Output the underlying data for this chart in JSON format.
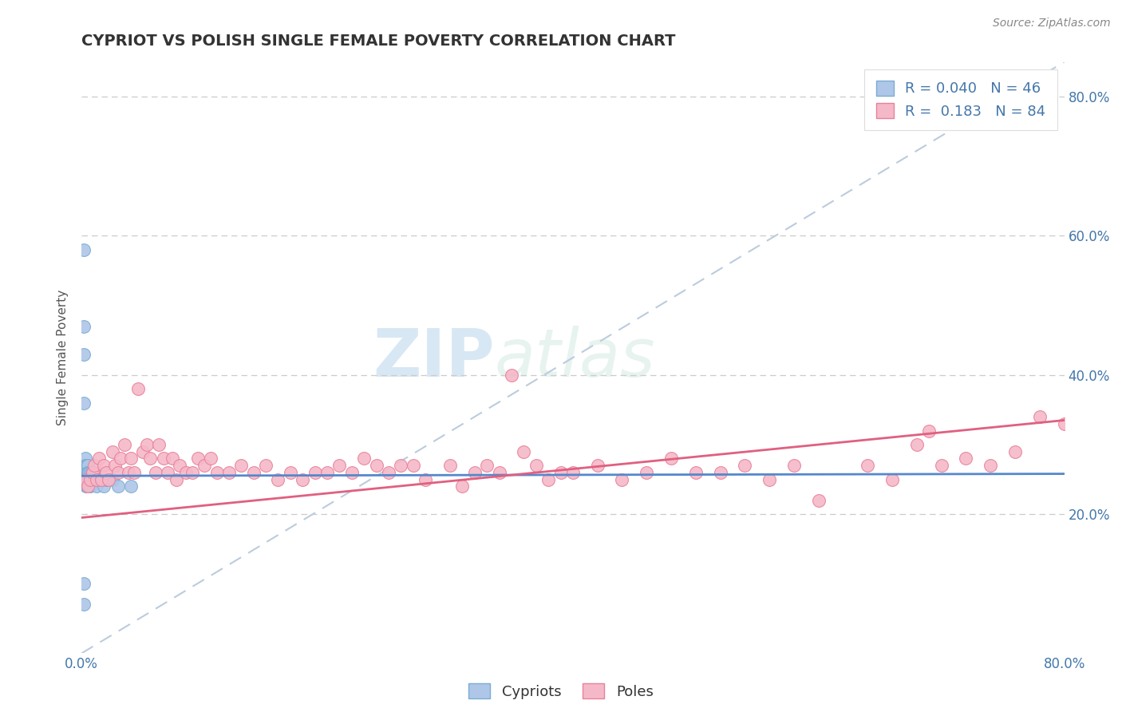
{
  "title": "CYPRIOT VS POLISH SINGLE FEMALE POVERTY CORRELATION CHART",
  "source_text": "Source: ZipAtlas.com",
  "ylabel": "Single Female Poverty",
  "xlim": [
    0.0,
    0.8
  ],
  "ylim": [
    0.0,
    0.85
  ],
  "ytick_positions": [
    0.2,
    0.4,
    0.6,
    0.8
  ],
  "ytick_labels": [
    "20.0%",
    "40.0%",
    "60.0%",
    "80.0%"
  ],
  "cypriot_color": "#aec6e8",
  "cypriot_edge": "#7aadd4",
  "polish_color": "#f5b8c8",
  "polish_edge": "#e8819a",
  "trend_cypriot_color": "#5588cc",
  "trend_polish_color": "#e06080",
  "trend_dashed_color": "#bbccdd",
  "R_cypriot": 0.04,
  "N_cypriot": 46,
  "R_polish": 0.183,
  "N_polish": 84,
  "legend_labels": [
    "Cypriots",
    "Poles"
  ],
  "watermark_zip": "ZIP",
  "watermark_atlas": "atlas",
  "cypriot_x": [
    0.002,
    0.002,
    0.002,
    0.002,
    0.002,
    0.002,
    0.003,
    0.003,
    0.003,
    0.003,
    0.003,
    0.004,
    0.004,
    0.004,
    0.004,
    0.004,
    0.004,
    0.004,
    0.004,
    0.005,
    0.005,
    0.005,
    0.005,
    0.005,
    0.005,
    0.005,
    0.005,
    0.006,
    0.006,
    0.006,
    0.006,
    0.007,
    0.007,
    0.007,
    0.008,
    0.008,
    0.009,
    0.01,
    0.01,
    0.012,
    0.015,
    0.018,
    0.02,
    0.025,
    0.03,
    0.04
  ],
  "cypriot_y": [
    0.58,
    0.47,
    0.43,
    0.36,
    0.1,
    0.07,
    0.28,
    0.27,
    0.26,
    0.26,
    0.25,
    0.27,
    0.27,
    0.26,
    0.26,
    0.25,
    0.25,
    0.24,
    0.24,
    0.27,
    0.27,
    0.26,
    0.26,
    0.25,
    0.25,
    0.24,
    0.24,
    0.26,
    0.26,
    0.25,
    0.24,
    0.26,
    0.25,
    0.24,
    0.26,
    0.25,
    0.25,
    0.26,
    0.25,
    0.24,
    0.25,
    0.24,
    0.25,
    0.25,
    0.24,
    0.24
  ],
  "polish_x": [
    0.003,
    0.005,
    0.007,
    0.009,
    0.01,
    0.012,
    0.014,
    0.016,
    0.018,
    0.02,
    0.022,
    0.025,
    0.027,
    0.03,
    0.032,
    0.035,
    0.038,
    0.04,
    0.043,
    0.046,
    0.05,
    0.053,
    0.056,
    0.06,
    0.063,
    0.067,
    0.07,
    0.074,
    0.077,
    0.08,
    0.085,
    0.09,
    0.095,
    0.1,
    0.105,
    0.11,
    0.12,
    0.13,
    0.14,
    0.15,
    0.16,
    0.17,
    0.18,
    0.19,
    0.2,
    0.21,
    0.22,
    0.23,
    0.24,
    0.25,
    0.26,
    0.27,
    0.28,
    0.3,
    0.31,
    0.32,
    0.33,
    0.34,
    0.35,
    0.36,
    0.37,
    0.38,
    0.39,
    0.4,
    0.42,
    0.44,
    0.46,
    0.48,
    0.5,
    0.52,
    0.54,
    0.56,
    0.58,
    0.6,
    0.64,
    0.66,
    0.68,
    0.7,
    0.72,
    0.74,
    0.76,
    0.78,
    0.8,
    0.69
  ],
  "polish_y": [
    0.25,
    0.24,
    0.25,
    0.26,
    0.27,
    0.25,
    0.28,
    0.25,
    0.27,
    0.26,
    0.25,
    0.29,
    0.27,
    0.26,
    0.28,
    0.3,
    0.26,
    0.28,
    0.26,
    0.38,
    0.29,
    0.3,
    0.28,
    0.26,
    0.3,
    0.28,
    0.26,
    0.28,
    0.25,
    0.27,
    0.26,
    0.26,
    0.28,
    0.27,
    0.28,
    0.26,
    0.26,
    0.27,
    0.26,
    0.27,
    0.25,
    0.26,
    0.25,
    0.26,
    0.26,
    0.27,
    0.26,
    0.28,
    0.27,
    0.26,
    0.27,
    0.27,
    0.25,
    0.27,
    0.24,
    0.26,
    0.27,
    0.26,
    0.4,
    0.29,
    0.27,
    0.25,
    0.26,
    0.26,
    0.27,
    0.25,
    0.26,
    0.28,
    0.26,
    0.26,
    0.27,
    0.25,
    0.27,
    0.22,
    0.27,
    0.25,
    0.3,
    0.27,
    0.28,
    0.27,
    0.29,
    0.34,
    0.33,
    0.32
  ]
}
